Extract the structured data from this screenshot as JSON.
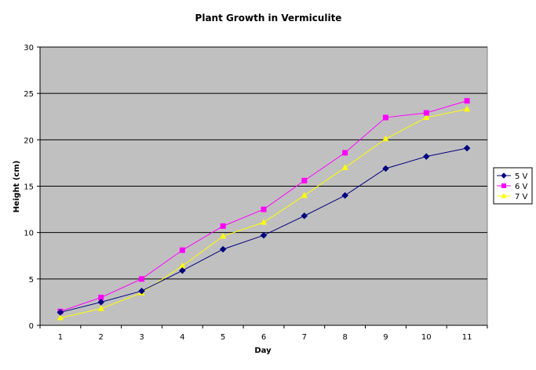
{
  "chart_data": {
    "type": "line",
    "title": "Plant Growth in Vermiculite",
    "xlabel": "Day",
    "ylabel": "Height (cm)",
    "categories": [
      "1",
      "2",
      "3",
      "4",
      "5",
      "6",
      "7",
      "8",
      "9",
      "10",
      "11"
    ],
    "ylim": [
      0,
      30
    ],
    "yticks": [
      0,
      5,
      10,
      15,
      20,
      25,
      30
    ],
    "grid": true,
    "plot_background": "#c0c0c0",
    "legend_position": "right",
    "series": [
      {
        "name": "5 V",
        "color": "#000080",
        "marker": "diamond",
        "values": [
          1.4,
          2.5,
          3.7,
          5.9,
          8.2,
          9.7,
          11.8,
          14.0,
          16.9,
          18.2,
          19.1
        ]
      },
      {
        "name": "6 V",
        "color": "#ff00ff",
        "marker": "square",
        "values": [
          1.5,
          3.0,
          5.0,
          8.1,
          10.7,
          12.5,
          15.6,
          18.6,
          22.4,
          22.9,
          24.2
        ]
      },
      {
        "name": "7 V",
        "color": "#ffff00",
        "marker": "triangle",
        "values": [
          0.8,
          1.8,
          3.5,
          6.4,
          9.6,
          11.1,
          14.0,
          17.0,
          20.1,
          22.4,
          23.3
        ]
      }
    ]
  }
}
